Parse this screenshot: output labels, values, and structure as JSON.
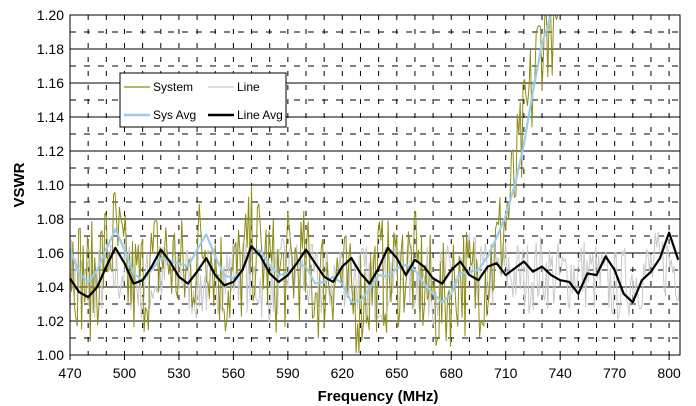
{
  "chart_data": {
    "type": "line",
    "title": "",
    "xlabel": "Frequency (MHz)",
    "ylabel": "VSWR",
    "xlim": [
      470,
      806
    ],
    "ylim": [
      1.0,
      1.2
    ],
    "x_ticks": [
      470,
      500,
      530,
      560,
      590,
      620,
      650,
      680,
      710,
      740,
      770,
      800
    ],
    "x_tick_labels": [
      "470",
      "500",
      "530",
      "560",
      "590",
      "620",
      "650",
      "680",
      "710",
      "740",
      "770",
      "800"
    ],
    "y_ticks": [
      1.0,
      1.02,
      1.04,
      1.06,
      1.08,
      1.1,
      1.12,
      1.14,
      1.16,
      1.18,
      1.2
    ],
    "y_tick_labels": [
      "1.00",
      "1.02",
      "1.04",
      "1.06",
      "1.08",
      "1.10",
      "1.12",
      "1.14",
      "1.16",
      "1.18",
      "1.20"
    ],
    "grid": true,
    "legend": {
      "placement": "upper-left",
      "columns": 2
    },
    "series": [
      {
        "name": "System",
        "color": "#8C8C14",
        "style": "thin-noisy",
        "x": [
          470,
          475,
          480,
          485,
          490,
          495,
          500,
          505,
          510,
          515,
          520,
          525,
          530,
          535,
          540,
          545,
          550,
          555,
          560,
          565,
          570,
          575,
          580,
          585,
          590,
          595,
          600,
          605,
          610,
          615,
          620,
          625,
          630,
          635,
          640,
          645,
          650,
          655,
          660,
          665,
          670,
          675,
          680,
          685,
          690,
          695,
          700,
          705,
          710,
          715,
          720,
          725,
          730,
          735,
          740
        ],
        "values": [
          1.06,
          1.05,
          1.04,
          1.05,
          1.06,
          1.07,
          1.05,
          1.04,
          1.045,
          1.05,
          1.06,
          1.055,
          1.05,
          1.045,
          1.06,
          1.07,
          1.055,
          1.04,
          1.045,
          1.05,
          1.065,
          1.06,
          1.05,
          1.045,
          1.05,
          1.055,
          1.05,
          1.04,
          1.045,
          1.05,
          1.045,
          1.03,
          1.035,
          1.04,
          1.05,
          1.045,
          1.05,
          1.055,
          1.05,
          1.04,
          1.035,
          1.03,
          1.04,
          1.05,
          1.04,
          1.045,
          1.05,
          1.06,
          1.08,
          1.1,
          1.13,
          1.16,
          1.19,
          1.2,
          1.19
        ]
      },
      {
        "name": "Line",
        "color": "#C8C8C8",
        "style": "thin-noisy",
        "x": [
          470,
          480,
          490,
          500,
          510,
          520,
          530,
          540,
          550,
          560,
          570,
          580,
          590,
          600,
          610,
          620,
          630,
          640,
          650,
          660,
          670,
          680,
          690,
          700,
          710,
          720,
          730,
          740,
          750,
          760,
          770,
          780,
          790,
          800,
          806
        ],
        "values": [
          1.05,
          1.04,
          1.045,
          1.05,
          1.04,
          1.045,
          1.05,
          1.04,
          1.045,
          1.05,
          1.045,
          1.04,
          1.05,
          1.045,
          1.04,
          1.05,
          1.045,
          1.04,
          1.05,
          1.045,
          1.04,
          1.045,
          1.05,
          1.045,
          1.05,
          1.045,
          1.05,
          1.045,
          1.05,
          1.045,
          1.04,
          1.045,
          1.05,
          1.055,
          1.05
        ]
      },
      {
        "name": "Sys Avg",
        "color": "#99CCEE",
        "style": "thick",
        "x": [
          470,
          475,
          480,
          485,
          490,
          495,
          500,
          505,
          510,
          515,
          520,
          525,
          530,
          535,
          540,
          545,
          550,
          555,
          560,
          565,
          570,
          575,
          580,
          585,
          590,
          595,
          600,
          605,
          610,
          615,
          620,
          625,
          630,
          635,
          640,
          645,
          650,
          655,
          660,
          665,
          670,
          675,
          680,
          685,
          690,
          695,
          700,
          705,
          710,
          715,
          720,
          725,
          730,
          735
        ],
        "values": [
          1.062,
          1.048,
          1.043,
          1.05,
          1.062,
          1.074,
          1.062,
          1.048,
          1.044,
          1.05,
          1.057,
          1.055,
          1.054,
          1.052,
          1.062,
          1.071,
          1.058,
          1.047,
          1.045,
          1.05,
          1.063,
          1.061,
          1.053,
          1.047,
          1.048,
          1.054,
          1.052,
          1.042,
          1.043,
          1.046,
          1.042,
          1.031,
          1.032,
          1.039,
          1.047,
          1.046,
          1.051,
          1.053,
          1.05,
          1.042,
          1.036,
          1.031,
          1.036,
          1.048,
          1.049,
          1.05,
          1.058,
          1.069,
          1.082,
          1.1,
          1.124,
          1.155,
          1.183,
          1.2
        ]
      },
      {
        "name": "Line Avg",
        "color": "#000000",
        "style": "thick",
        "x": [
          470,
          475,
          480,
          485,
          490,
          495,
          500,
          505,
          510,
          515,
          520,
          525,
          530,
          535,
          540,
          545,
          550,
          555,
          560,
          565,
          570,
          575,
          580,
          585,
          590,
          595,
          600,
          605,
          610,
          615,
          620,
          625,
          630,
          635,
          640,
          645,
          650,
          655,
          660,
          665,
          670,
          675,
          680,
          685,
          690,
          695,
          700,
          705,
          710,
          715,
          720,
          725,
          730,
          735,
          740,
          745,
          750,
          755,
          760,
          765,
          770,
          775,
          780,
          785,
          790,
          795,
          800,
          805
        ],
        "values": [
          1.045,
          1.037,
          1.034,
          1.04,
          1.052,
          1.063,
          1.054,
          1.042,
          1.044,
          1.052,
          1.062,
          1.055,
          1.046,
          1.042,
          1.049,
          1.057,
          1.047,
          1.041,
          1.043,
          1.05,
          1.064,
          1.058,
          1.048,
          1.043,
          1.047,
          1.054,
          1.062,
          1.054,
          1.046,
          1.043,
          1.052,
          1.057,
          1.048,
          1.042,
          1.051,
          1.063,
          1.057,
          1.047,
          1.056,
          1.052,
          1.045,
          1.042,
          1.05,
          1.055,
          1.047,
          1.044,
          1.052,
          1.054,
          1.047,
          1.051,
          1.055,
          1.049,
          1.052,
          1.047,
          1.044,
          1.043,
          1.036,
          1.048,
          1.047,
          1.058,
          1.05,
          1.036,
          1.031,
          1.044,
          1.049,
          1.057,
          1.072,
          1.056
        ]
      }
    ]
  }
}
